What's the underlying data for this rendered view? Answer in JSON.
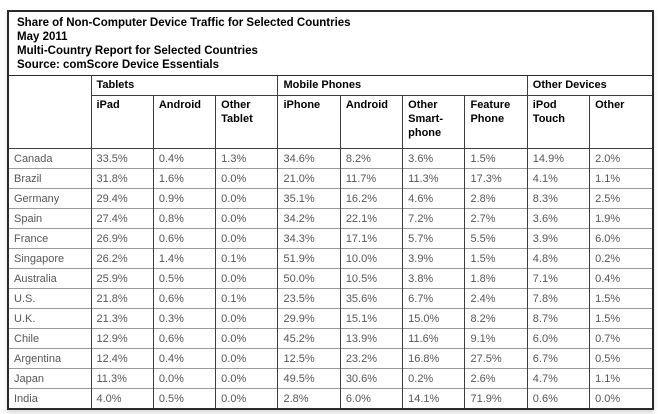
{
  "header": {
    "title": "Share of Non-Computer Device Traffic for Selected Countries",
    "date": "May 2011",
    "subtitle": "Multi-Country Report for Selected Countries",
    "source": "Source: comScore Device Essentials"
  },
  "table": {
    "group_headers": [
      "Tablets",
      "Mobile Phones",
      "Other Devices"
    ],
    "column_headers": [
      "iPad",
      "Android",
      "Other\nTablet",
      "iPhone",
      "Android",
      "Other\nSmart-\nphone",
      "Feature\nPhone",
      "iPod\nTouch",
      "Other"
    ]
  },
  "colors": {
    "border": "#2a2a2a",
    "vertical_grid": "#3d3d3d",
    "horizontal_grid": "#9b9b9b",
    "header_text": "#000000",
    "cell_text": "#575757",
    "background": "#ffffff"
  },
  "chart_data": {
    "type": "table",
    "title": "Share of Non-Computer Device Traffic for Selected Countries",
    "period": "May 2011",
    "subtitle": "Multi-Country Report for Selected Countries",
    "source": "comScore Device Essentials",
    "unit": "percent share",
    "column_groups": [
      {
        "label": "Tablets",
        "columns": [
          "iPad",
          "Android",
          "Other Tablet"
        ]
      },
      {
        "label": "Mobile Phones",
        "columns": [
          "iPhone",
          "Android",
          "Other Smartphone",
          "Feature Phone"
        ]
      },
      {
        "label": "Other Devices",
        "columns": [
          "iPod Touch",
          "Other"
        ]
      }
    ],
    "rows": [
      {
        "country": "Canada",
        "values": [
          33.5,
          0.4,
          1.3,
          34.6,
          8.2,
          3.6,
          1.5,
          14.9,
          2.0
        ]
      },
      {
        "country": "Brazil",
        "values": [
          31.8,
          1.6,
          0.0,
          21.0,
          11.7,
          11.3,
          17.3,
          4.1,
          1.1
        ]
      },
      {
        "country": "Germany",
        "values": [
          29.4,
          0.9,
          0.0,
          35.1,
          16.2,
          4.6,
          2.8,
          8.3,
          2.5
        ]
      },
      {
        "country": "Spain",
        "values": [
          27.4,
          0.8,
          0.0,
          34.2,
          22.1,
          7.2,
          2.7,
          3.6,
          1.9
        ]
      },
      {
        "country": "France",
        "values": [
          26.9,
          0.6,
          0.0,
          34.3,
          17.1,
          5.7,
          5.5,
          3.9,
          6.0
        ]
      },
      {
        "country": "Singapore",
        "values": [
          26.2,
          1.4,
          0.1,
          51.9,
          10.0,
          3.9,
          1.5,
          4.8,
          0.2
        ]
      },
      {
        "country": "Australia",
        "values": [
          25.9,
          0.5,
          0.0,
          50.0,
          10.5,
          3.8,
          1.8,
          7.1,
          0.4
        ]
      },
      {
        "country": "U.S.",
        "values": [
          21.8,
          0.6,
          0.1,
          23.5,
          35.6,
          6.7,
          2.4,
          7.8,
          1.5
        ]
      },
      {
        "country": "U.K.",
        "values": [
          21.3,
          0.3,
          0.0,
          29.9,
          15.1,
          15.0,
          8.2,
          8.7,
          1.5
        ]
      },
      {
        "country": "Chile",
        "values": [
          12.9,
          0.6,
          0.0,
          45.2,
          13.9,
          11.6,
          9.1,
          6.0,
          0.7
        ]
      },
      {
        "country": "Argentina",
        "values": [
          12.4,
          0.4,
          0.0,
          12.5,
          23.2,
          16.8,
          27.5,
          6.7,
          0.5
        ]
      },
      {
        "country": "Japan",
        "values": [
          11.3,
          0.0,
          0.0,
          49.5,
          30.6,
          0.2,
          2.6,
          4.7,
          1.1
        ]
      },
      {
        "country": "India",
        "values": [
          4.0,
          0.5,
          0.0,
          2.8,
          6.0,
          14.1,
          71.9,
          0.6,
          0.0
        ]
      }
    ]
  }
}
